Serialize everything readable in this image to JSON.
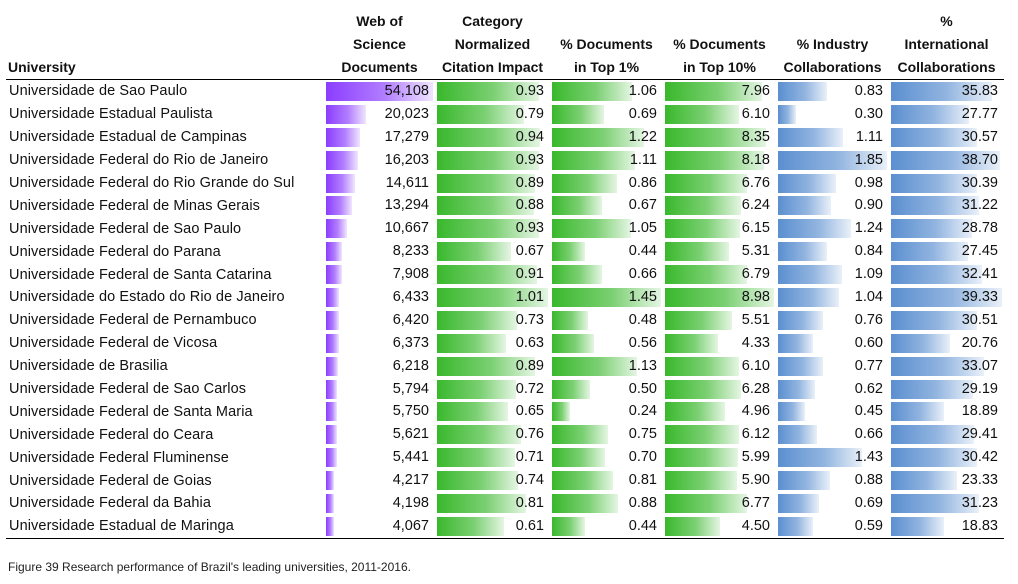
{
  "chart_data": {
    "type": "table",
    "columns": [
      {
        "key": "university",
        "label_lines": [
          "",
          "",
          "University"
        ]
      },
      {
        "key": "wos",
        "label_lines": [
          "Web of",
          "Science",
          "Documents"
        ],
        "color": "#8b3dff",
        "max": 54108,
        "format": "thousands"
      },
      {
        "key": "cnci",
        "label_lines": [
          "Category",
          "Normalized",
          "Citation Impact"
        ],
        "color": "#39b82c",
        "max": 1.01,
        "format": "2dp"
      },
      {
        "key": "top1",
        "label_lines": [
          "",
          "% Documents",
          "in Top 1%"
        ],
        "color": "#39b82c",
        "max": 1.45,
        "format": "2dp"
      },
      {
        "key": "top10",
        "label_lines": [
          "",
          "% Documents",
          "in Top 10%"
        ],
        "color": "#39b82c",
        "max": 8.98,
        "format": "2dp"
      },
      {
        "key": "industry",
        "label_lines": [
          "",
          "% Industry",
          "Collaborations"
        ],
        "color": "#5b8fd0",
        "max": 1.85,
        "format": "2dp"
      },
      {
        "key": "intl",
        "label_lines": [
          "%",
          "International",
          "Collaborations"
        ],
        "color": "#5b8fd0",
        "max": 39.33,
        "format": "2dp"
      }
    ],
    "rows": [
      {
        "university": "Universidade de Sao Paulo",
        "wos": 54108,
        "cnci": 0.93,
        "top1": 1.06,
        "top10": 7.96,
        "industry": 0.83,
        "intl": 35.83
      },
      {
        "university": "Universidade Estadual Paulista",
        "wos": 20023,
        "cnci": 0.79,
        "top1": 0.69,
        "top10": 6.1,
        "industry": 0.3,
        "intl": 27.77
      },
      {
        "university": "Universidade Estadual de Campinas",
        "wos": 17279,
        "cnci": 0.94,
        "top1": 1.22,
        "top10": 8.35,
        "industry": 1.11,
        "intl": 30.57
      },
      {
        "university": "Universidade Federal do Rio de Janeiro",
        "wos": 16203,
        "cnci": 0.93,
        "top1": 1.11,
        "top10": 8.18,
        "industry": 1.85,
        "intl": 38.7
      },
      {
        "university": "Universidade Federal do Rio Grande do Sul",
        "wos": 14611,
        "cnci": 0.89,
        "top1": 0.86,
        "top10": 6.76,
        "industry": 0.98,
        "intl": 30.39
      },
      {
        "university": "Universidade Federal de Minas Gerais",
        "wos": 13294,
        "cnci": 0.88,
        "top1": 0.67,
        "top10": 6.24,
        "industry": 0.9,
        "intl": 31.22
      },
      {
        "university": "Universidade Federal de Sao Paulo",
        "wos": 10667,
        "cnci": 0.93,
        "top1": 1.05,
        "top10": 6.15,
        "industry": 1.24,
        "intl": 28.78
      },
      {
        "university": "Universidade Federal do Parana",
        "wos": 8233,
        "cnci": 0.67,
        "top1": 0.44,
        "top10": 5.31,
        "industry": 0.84,
        "intl": 27.45
      },
      {
        "university": "Universidade Federal de Santa Catarina",
        "wos": 7908,
        "cnci": 0.91,
        "top1": 0.66,
        "top10": 6.79,
        "industry": 1.09,
        "intl": 32.41
      },
      {
        "university": "Universidade do Estado do Rio de Janeiro",
        "wos": 6433,
        "cnci": 1.01,
        "top1": 1.45,
        "top10": 8.98,
        "industry": 1.04,
        "intl": 39.33
      },
      {
        "university": "Universidade Federal de Pernambuco",
        "wos": 6420,
        "cnci": 0.73,
        "top1": 0.48,
        "top10": 5.51,
        "industry": 0.76,
        "intl": 30.51
      },
      {
        "university": "Universidade Federal de Vicosa",
        "wos": 6373,
        "cnci": 0.63,
        "top1": 0.56,
        "top10": 4.33,
        "industry": 0.6,
        "intl": 20.76
      },
      {
        "university": "Universidade de Brasilia",
        "wos": 6218,
        "cnci": 0.89,
        "top1": 1.13,
        "top10": 6.1,
        "industry": 0.77,
        "intl": 33.07
      },
      {
        "university": "Universidade Federal de Sao Carlos",
        "wos": 5794,
        "cnci": 0.72,
        "top1": 0.5,
        "top10": 6.28,
        "industry": 0.62,
        "intl": 29.19
      },
      {
        "university": "Universidade Federal de Santa Maria",
        "wos": 5750,
        "cnci": 0.65,
        "top1": 0.24,
        "top10": 4.96,
        "industry": 0.45,
        "intl": 18.89
      },
      {
        "university": "Universidade Federal do Ceara",
        "wos": 5621,
        "cnci": 0.76,
        "top1": 0.75,
        "top10": 6.12,
        "industry": 0.66,
        "intl": 29.41
      },
      {
        "university": "Universidade Federal Fluminense",
        "wos": 5441,
        "cnci": 0.71,
        "top1": 0.7,
        "top10": 5.99,
        "industry": 1.43,
        "intl": 30.42
      },
      {
        "university": "Universidade Federal de Goias",
        "wos": 4217,
        "cnci": 0.74,
        "top1": 0.81,
        "top10": 5.9,
        "industry": 0.88,
        "intl": 23.33
      },
      {
        "university": "Universidade Federal da Bahia",
        "wos": 4198,
        "cnci": 0.81,
        "top1": 0.88,
        "top10": 6.77,
        "industry": 0.69,
        "intl": 31.23
      },
      {
        "university": "Universidade Estadual de Maringa",
        "wos": 4067,
        "cnci": 0.61,
        "top1": 0.44,
        "top10": 4.5,
        "industry": 0.59,
        "intl": 18.83
      }
    ]
  },
  "caption": "Figure 39 Research performance of Brazil's leading universities, 2011-2016."
}
